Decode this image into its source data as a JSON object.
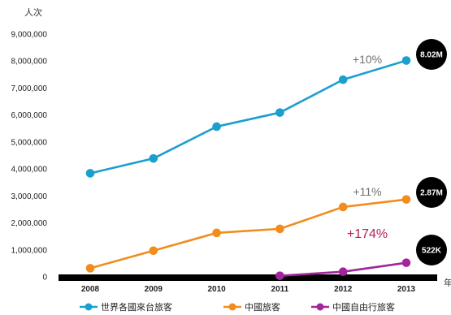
{
  "chart_data": {
    "type": "line",
    "ylabel": "人次",
    "xlabel": "年",
    "categories": [
      "2008",
      "2009",
      "2010",
      "2011",
      "2012",
      "2013"
    ],
    "ylim": [
      0,
      9000000
    ],
    "yticks": [
      0,
      1000000,
      2000000,
      3000000,
      4000000,
      5000000,
      6000000,
      7000000,
      8000000,
      9000000
    ],
    "ytick_labels": [
      "0",
      "1,000,000",
      "2,000,000",
      "3,000,000",
      "4,000,000",
      "5,000,000",
      "6,000,000",
      "7,000,000",
      "8,000,000",
      "9,000,000"
    ],
    "grid": false,
    "legend_position": "bottom",
    "series": [
      {
        "name": "世界各國來台旅客",
        "color": "#1b9fce",
        "values": [
          3840000,
          4390000,
          5570000,
          6090000,
          7310000,
          8020000
        ],
        "growth_label": "+10%",
        "growth_color": "#707070",
        "end_label": "8.02M"
      },
      {
        "name": "中國旅客",
        "color": "#f28c1c",
        "values": [
          320000,
          970000,
          1630000,
          1780000,
          2590000,
          2870000
        ],
        "growth_label": "+11%",
        "growth_color": "#707070",
        "end_label": "2.87M"
      },
      {
        "name": "中國自由行旅客",
        "color": "#a3259c",
        "values": [
          null,
          null,
          null,
          40000,
          190000,
          522000
        ],
        "growth_label": "+174%",
        "growth_color": "#b51d5c",
        "end_label": "522K"
      }
    ]
  }
}
